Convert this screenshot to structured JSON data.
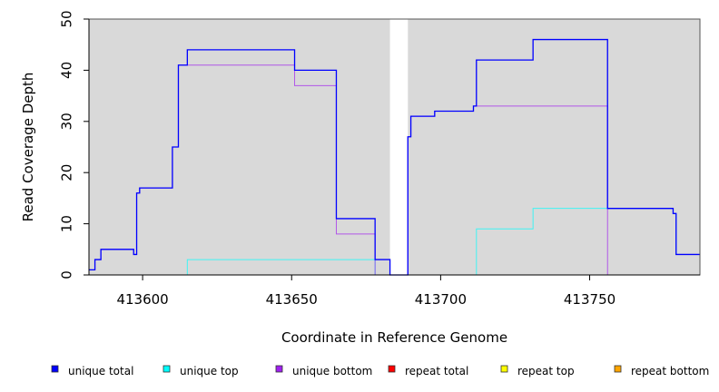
{
  "chart_data": {
    "type": "line",
    "xlabel": "Coordinate in Reference Genome",
    "ylabel": "Read Coverage Depth",
    "xlim": [
      413582,
      413787
    ],
    "ylim": [
      0,
      50
    ],
    "x_ticks": [
      413600,
      413650,
      413700,
      413750
    ],
    "y_ticks": [
      0,
      10,
      20,
      30,
      40,
      50
    ],
    "grid": false,
    "background": "#d9d9d9",
    "gap": [
      413683,
      413689
    ],
    "legend_position": "bottom",
    "series": [
      {
        "name": "unique total",
        "color": "#0000ff",
        "points": [
          [
            413582,
            1
          ],
          [
            413584,
            1
          ],
          [
            413584,
            3
          ],
          [
            413586,
            3
          ],
          [
            413586,
            5
          ],
          [
            413597,
            5
          ],
          [
            413597,
            4
          ],
          [
            413598,
            4
          ],
          [
            413598,
            16
          ],
          [
            413599,
            16
          ],
          [
            413599,
            17
          ],
          [
            413610,
            17
          ],
          [
            413610,
            25
          ],
          [
            413612,
            25
          ],
          [
            413612,
            41
          ],
          [
            413615,
            41
          ],
          [
            413615,
            44
          ],
          [
            413651,
            44
          ],
          [
            413651,
            40
          ],
          [
            413665,
            40
          ],
          [
            413665,
            11
          ],
          [
            413678,
            11
          ],
          [
            413678,
            3
          ],
          [
            413683,
            3
          ],
          [
            413683,
            0
          ],
          [
            413689,
            0
          ],
          [
            413689,
            27
          ],
          [
            413690,
            27
          ],
          [
            413690,
            31
          ],
          [
            413698,
            31
          ],
          [
            413698,
            32
          ],
          [
            413711,
            32
          ],
          [
            413711,
            33
          ],
          [
            413712,
            33
          ],
          [
            413712,
            42
          ],
          [
            413731,
            42
          ],
          [
            413731,
            46
          ],
          [
            413756,
            46
          ],
          [
            413756,
            13
          ],
          [
            413778,
            13
          ],
          [
            413778,
            12
          ],
          [
            413779,
            12
          ],
          [
            413779,
            4
          ],
          [
            413787,
            4
          ]
        ]
      },
      {
        "name": "unique top",
        "color": "#00ffff",
        "points": [
          [
            413582,
            0
          ],
          [
            413615,
            0
          ],
          [
            413615,
            3
          ],
          [
            413678,
            3
          ],
          [
            413678,
            0
          ],
          [
            413683,
            0
          ],
          [
            413689,
            0
          ],
          [
            413712,
            0
          ],
          [
            413712,
            9
          ],
          [
            413731,
            9
          ],
          [
            413731,
            13
          ],
          [
            413756,
            13
          ],
          [
            413756,
            13
          ],
          [
            413778,
            13
          ],
          [
            413778,
            12
          ],
          [
            413779,
            12
          ],
          [
            413779,
            4
          ],
          [
            413787,
            4
          ]
        ]
      },
      {
        "name": "unique bottom",
        "color": "#a020f0",
        "points": [
          [
            413582,
            1
          ],
          [
            413584,
            1
          ],
          [
            413584,
            3
          ],
          [
            413586,
            3
          ],
          [
            413586,
            5
          ],
          [
            413597,
            5
          ],
          [
            413597,
            4
          ],
          [
            413598,
            4
          ],
          [
            413598,
            16
          ],
          [
            413599,
            16
          ],
          [
            413599,
            17
          ],
          [
            413610,
            17
          ],
          [
            413610,
            25
          ],
          [
            413612,
            25
          ],
          [
            413612,
            41
          ],
          [
            413651,
            41
          ],
          [
            413651,
            37
          ],
          [
            413665,
            37
          ],
          [
            413665,
            8
          ],
          [
            413678,
            8
          ],
          [
            413678,
            0
          ],
          [
            413683,
            0
          ],
          [
            413689,
            0
          ],
          [
            413689,
            27
          ],
          [
            413690,
            27
          ],
          [
            413690,
            31
          ],
          [
            413698,
            31
          ],
          [
            413698,
            32
          ],
          [
            413711,
            32
          ],
          [
            413711,
            33
          ],
          [
            413756,
            33
          ],
          [
            413756,
            0
          ],
          [
            413787,
            0
          ]
        ]
      },
      {
        "name": "repeat total",
        "color": "#ff0000",
        "points": [
          [
            413582,
            0
          ],
          [
            413683,
            0
          ],
          [
            413689,
            0
          ],
          [
            413787,
            0
          ]
        ]
      },
      {
        "name": "repeat top",
        "color": "#ffff00",
        "points": [
          [
            413582,
            0
          ],
          [
            413683,
            0
          ],
          [
            413689,
            0
          ],
          [
            413787,
            0
          ]
        ]
      },
      {
        "name": "repeat bottom",
        "color": "#ffa500",
        "points": [
          [
            413582,
            0
          ],
          [
            413683,
            0
          ],
          [
            413689,
            0
          ],
          [
            413787,
            0
          ]
        ]
      }
    ]
  }
}
